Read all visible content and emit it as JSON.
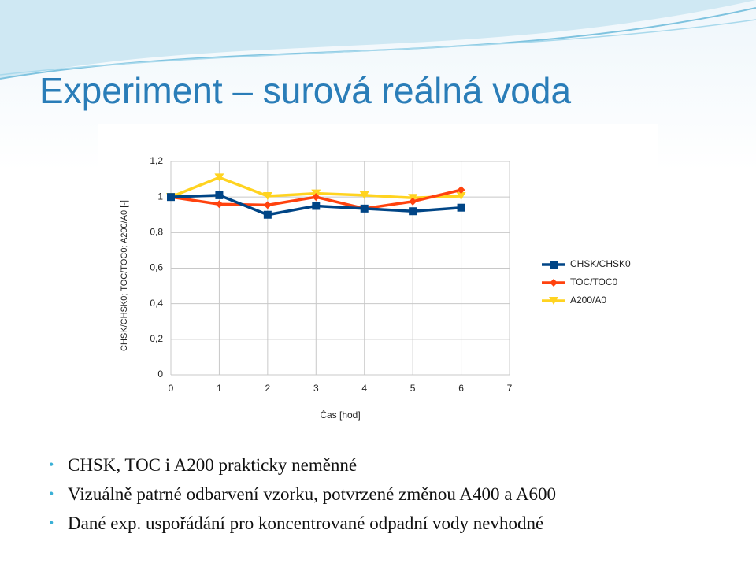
{
  "title": "Experiment – surová reálná voda",
  "chart_data": {
    "type": "line",
    "x_label": "Čas [hod]",
    "y_label": "CHSK/CHSK0; TOC/TOC0; A200/A0 [-]",
    "x": [
      0,
      1,
      2,
      3,
      4,
      5,
      6
    ],
    "series": [
      {
        "name": "CHSK/CHSK0",
        "color": "#004586",
        "marker": "square",
        "values": [
          1.0,
          1.01,
          0.9,
          0.95,
          0.935,
          0.92,
          0.94
        ]
      },
      {
        "name": "TOC/TOC0",
        "color": "#ff420e",
        "marker": "diamond",
        "values": [
          1.0,
          0.96,
          0.955,
          1.0,
          0.935,
          0.975,
          1.04
        ]
      },
      {
        "name": "A200/A0",
        "color": "#ffd320",
        "marker": "triangle-down",
        "values": [
          1.0,
          1.11,
          1.005,
          1.02,
          1.01,
          0.995,
          1.005
        ]
      }
    ],
    "xlim": [
      0,
      7
    ],
    "xticks": [
      0,
      1,
      2,
      3,
      4,
      5,
      6,
      7
    ],
    "ylim": [
      0,
      1.2
    ],
    "yticks": [
      0,
      {
        "value": 0.2,
        "label": "0,2"
      },
      {
        "value": 0.4,
        "label": "0,4"
      },
      {
        "value": 0.6,
        "label": "0,6"
      },
      {
        "value": 0.8,
        "label": "0,8"
      },
      1,
      {
        "value": 1.2,
        "label": "1,2"
      }
    ],
    "grid": true,
    "legend": "right"
  },
  "bullets": [
    "CHSK, TOC i A200 prakticky neměnné",
    "Vizuálně patrné odbarvení vzorku, potvrzené změnou A400 a A600",
    "Dané exp. uspořádání pro koncentrované odpadní vody nevhodné"
  ]
}
